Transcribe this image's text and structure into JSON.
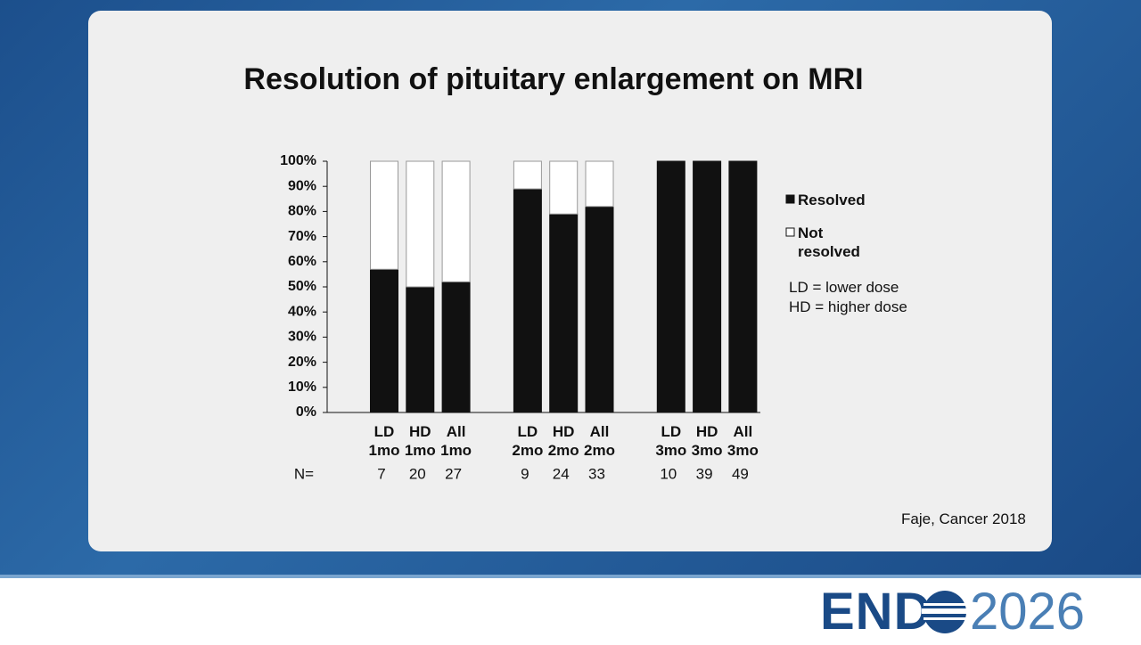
{
  "chart_data": {
    "type": "stacked_bar",
    "title": "Resolution of pituitary enlargement on MRI",
    "categories": [
      "LD 1mo",
      "HD 1mo",
      "All 1mo",
      "LD 2mo",
      "HD 2mo",
      "All 2mo",
      "LD 3mo",
      "HD 3mo",
      "All 3mo"
    ],
    "series": [
      {
        "name": "Resolved",
        "color": "#111111",
        "values": [
          57,
          50,
          52,
          89,
          79,
          82,
          100,
          100,
          100
        ]
      },
      {
        "name": "Not resolved",
        "color": "#ffffff",
        "values": [
          43,
          50,
          48,
          11,
          21,
          18,
          0,
          0,
          0
        ]
      }
    ],
    "ylim": [
      0,
      100
    ],
    "yticks": [
      {
        "value": 0,
        "label": "0%"
      },
      {
        "value": 10,
        "label": "10%"
      },
      {
        "value": 20,
        "label": "20%"
      },
      {
        "value": 30,
        "label": "30%"
      },
      {
        "value": 40,
        "label": "40%"
      },
      {
        "value": 50,
        "label": "50%"
      },
      {
        "value": 60,
        "label": "60%"
      },
      {
        "value": 70,
        "label": "70%"
      },
      {
        "value": 80,
        "label": "80%"
      },
      {
        "value": 90,
        "label": "90%"
      },
      {
        "value": 100,
        "label": "100%"
      }
    ],
    "n_label": "N=",
    "n_values": [
      7,
      20,
      27,
      9,
      24,
      33,
      10,
      39,
      49
    ],
    "notes": [
      "LD = lower dose",
      "HD = higher dose"
    ],
    "source": "Faje, Cancer 2018"
  },
  "logo": {
    "left": "END",
    "right": "2026"
  }
}
